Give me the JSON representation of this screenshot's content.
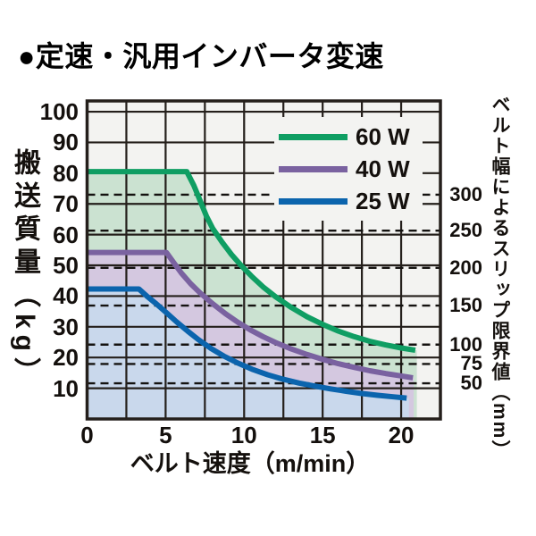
{
  "title": "●定速・汎用インバータ変速",
  "chart_data": {
    "type": "line",
    "title": "●定速・汎用インバータ変速",
    "xlabel": "ベルト速度（m/min）",
    "ylabel_left": "搬送質量（kg）",
    "ylabel_right": "ベルト幅によるスリップ限界値（mm）",
    "x_ticks": [
      0,
      5,
      10,
      15,
      20
    ],
    "x_grid_step": 2.5,
    "x_max": 22.5,
    "y_ticks": [
      10,
      20,
      30,
      40,
      50,
      60,
      70,
      80,
      90,
      100
    ],
    "y_max": 103.5,
    "grid": true,
    "legend_position": "top-right",
    "legend": [
      "60 W",
      "40 W",
      "25 W"
    ],
    "series": [
      {
        "name": "60 W",
        "color": "#0f9e63",
        "fill": "#cbe2d1",
        "fill_end_x": 21.0,
        "points": [
          [
            0,
            80.5
          ],
          [
            6.35,
            80.5
          ],
          [
            6.8,
            76
          ],
          [
            7.2,
            71
          ],
          [
            7.6,
            66
          ],
          [
            8,
            62
          ],
          [
            8.6,
            57.5
          ],
          [
            9.2,
            53.5
          ],
          [
            9.8,
            50
          ],
          [
            10.5,
            46.3
          ],
          [
            11.2,
            43
          ],
          [
            12,
            39.8
          ],
          [
            13,
            36.3
          ],
          [
            14,
            33.3
          ],
          [
            15,
            30.8
          ],
          [
            16,
            28.6
          ],
          [
            17,
            26.8
          ],
          [
            18,
            25.3
          ],
          [
            19,
            24.1
          ],
          [
            20,
            23.1
          ],
          [
            20.9,
            22.4
          ]
        ]
      },
      {
        "name": "40 W",
        "color": "#7a62a0",
        "fill": "#d4c8e0",
        "fill_end_x": 20.8,
        "points": [
          [
            0,
            54.2
          ],
          [
            5.05,
            54.2
          ],
          [
            5.5,
            51
          ],
          [
            6,
            47.5
          ],
          [
            6.6,
            44
          ],
          [
            7.2,
            41
          ],
          [
            8,
            37.5
          ],
          [
            8.8,
            34.3
          ],
          [
            9.6,
            31.5
          ],
          [
            10.4,
            29
          ],
          [
            11.2,
            26.8
          ],
          [
            12,
            24.9
          ],
          [
            13,
            22.8
          ],
          [
            14,
            21
          ],
          [
            15,
            19.4
          ],
          [
            16,
            18
          ],
          [
            17,
            16.8
          ],
          [
            18,
            15.7
          ],
          [
            19,
            14.8
          ],
          [
            20,
            14
          ],
          [
            20.75,
            13.4
          ]
        ]
      },
      {
        "name": "25 W",
        "color": "#0b64ad",
        "fill": "#c9d8ec",
        "fill_end_x": 20.5,
        "points": [
          [
            0,
            42.3
          ],
          [
            3.3,
            42.3
          ],
          [
            3.8,
            40
          ],
          [
            4.4,
            37.5
          ],
          [
            5,
            34.8
          ],
          [
            5.7,
            31.6
          ],
          [
            6.4,
            28.6
          ],
          [
            7.1,
            25.8
          ],
          [
            7.9,
            22.9
          ],
          [
            8.7,
            20.5
          ],
          [
            9.6,
            18.2
          ],
          [
            10.5,
            16.2
          ],
          [
            11.5,
            14.4
          ],
          [
            12.5,
            12.9
          ],
          [
            13.5,
            11.7
          ],
          [
            14.5,
            10.7
          ],
          [
            15.5,
            9.8
          ],
          [
            16.5,
            9.0
          ],
          [
            17.5,
            8.3
          ],
          [
            18.5,
            7.7
          ],
          [
            19.5,
            7.2
          ],
          [
            20.35,
            6.8
          ]
        ]
      }
    ],
    "slip_limits": [
      {
        "mm": "300",
        "kg_pos": 73.0
      },
      {
        "mm": "250",
        "kg_pos": 61.3
      },
      {
        "mm": "200",
        "kg_pos": 49.2
      },
      {
        "mm": "150",
        "kg_pos": 36.9
      },
      {
        "mm": "100",
        "kg_pos": 24.2
      },
      {
        "mm": "75",
        "kg_pos": 17.9
      },
      {
        "mm": "50",
        "kg_pos": 11.6
      }
    ],
    "colors": {
      "grid": "#241f1b",
      "dashed": "#141210",
      "plot_bg": "#f3f3f1",
      "page_bg": "#ffffff",
      "text": "#14100d"
    }
  }
}
